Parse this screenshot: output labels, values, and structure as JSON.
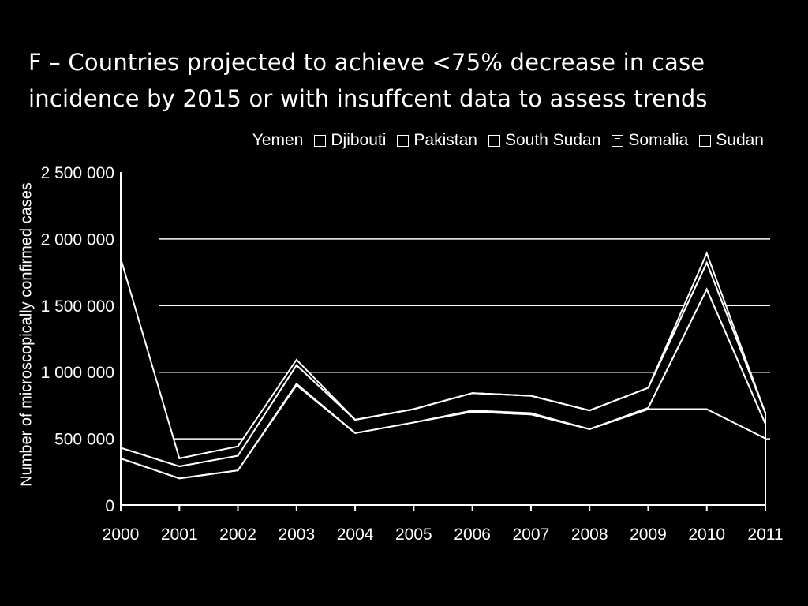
{
  "chart_data": {
    "type": "area",
    "title_line1": "F – Countries projected to achieve <75% decrease in case",
    "title_line2": "incidence by 2015 or with insuffcent data to assess trends",
    "ylabel": "Number of microscopically confirmed cases",
    "xlabel": "",
    "categories": [
      "2000",
      "2001",
      "2002",
      "2003",
      "2004",
      "2005",
      "2006",
      "2007",
      "2008",
      "2009",
      "2010",
      "2011"
    ],
    "ylim": [
      0,
      2500000
    ],
    "ytick_values": [
      0,
      500000,
      1000000,
      1500000,
      2000000,
      2500000
    ],
    "ytick_labels": [
      "0",
      "500 000",
      "1 000 000",
      "1 500 000",
      "2 000 000",
      "2 500 000"
    ],
    "stacked": true,
    "grid": true,
    "legend_position": "top-right",
    "series": [
      {
        "name": "Sudan",
        "swatch": "plain",
        "values": [
          350000,
          200000,
          260000,
          900000,
          540000,
          620000,
          700000,
          680000,
          570000,
          720000,
          720000,
          500000
        ]
      },
      {
        "name": "Somalia",
        "swatch": "inner",
        "values": [
          0,
          0,
          0,
          10000,
          0,
          0,
          10000,
          10000,
          0,
          10000,
          900000,
          110000
        ]
      },
      {
        "name": "South Sudan",
        "swatch": "plain",
        "values": [
          0,
          0,
          0,
          0,
          0,
          0,
          0,
          0,
          0,
          0,
          0,
          0
        ]
      },
      {
        "name": "Pakistan",
        "swatch": "plain",
        "values": [
          80000,
          90000,
          110000,
          140000,
          100000,
          100000,
          130000,
          130000,
          140000,
          150000,
          200000,
          80000
        ]
      },
      {
        "name": "Djibouti",
        "swatch": "plain",
        "values": [
          0,
          0,
          0,
          0,
          0,
          0,
          0,
          0,
          0,
          0,
          0,
          0
        ]
      },
      {
        "name": "Yemen",
        "swatch": "none",
        "values": [
          1420000,
          60000,
          70000,
          40000,
          0,
          0,
          0,
          0,
          0,
          0,
          70000,
          0
        ]
      }
    ]
  }
}
